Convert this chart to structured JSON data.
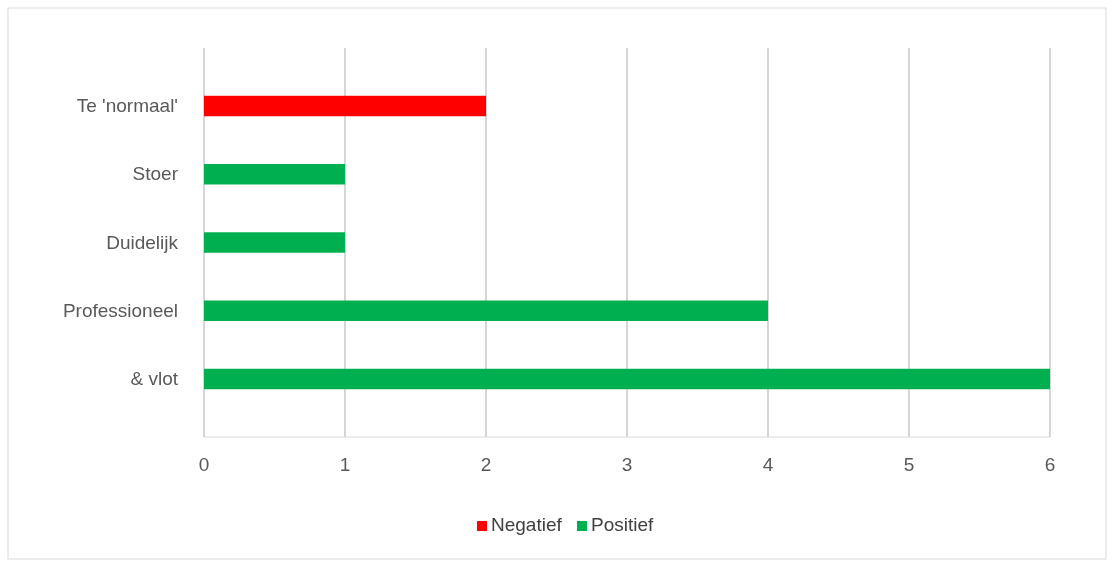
{
  "chart_data": {
    "type": "bar",
    "orientation": "horizontal",
    "categories": [
      "Te 'normaal'",
      "Stoer",
      "Duidelijk",
      "Professioneel",
      "& vlot"
    ],
    "series": [
      {
        "name": "Negatief",
        "color": "#ff0000",
        "values": [
          2,
          null,
          null,
          null,
          null
        ]
      },
      {
        "name": "Positief",
        "color": "#00b050",
        "values": [
          null,
          1,
          1,
          4,
          6
        ]
      }
    ],
    "xlim": [
      0,
      6
    ],
    "xticks": [
      0,
      1,
      2,
      3,
      4,
      5,
      6
    ],
    "grid": "x",
    "legend": "bottom"
  }
}
